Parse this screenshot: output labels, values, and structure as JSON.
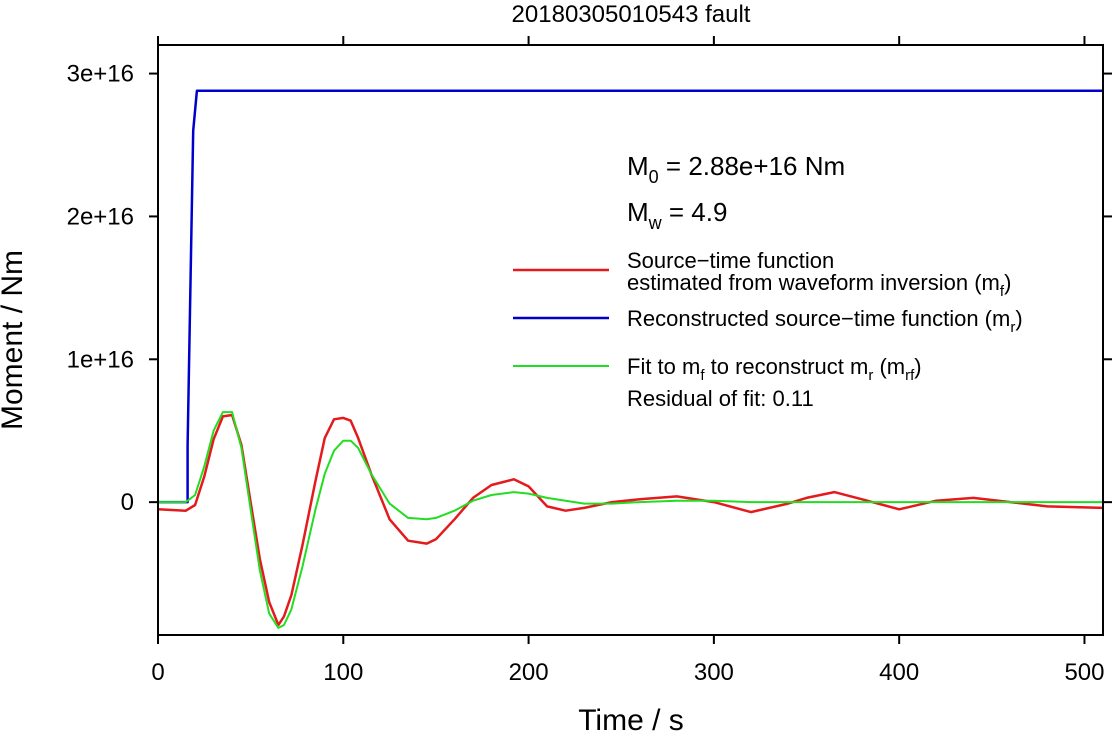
{
  "chart_data": {
    "type": "line",
    "title": "20180305010543 fault",
    "xlabel": "Time / s",
    "ylabel": "Moment / Nm",
    "xlim": [
      0,
      510
    ],
    "ylim": [
      -9300000000000000.0,
      3.2e+16
    ],
    "xticks": [
      0,
      100,
      200,
      300,
      400,
      500
    ],
    "xtick_labels": [
      "0",
      "100",
      "200",
      "300",
      "400",
      "500"
    ],
    "yticks": [
      0,
      1e+16,
      2e+16,
      3e+16
    ],
    "ytick_labels": [
      "0",
      "1e+16",
      "2e+16",
      "3e+16"
    ],
    "grid": false,
    "legend_position": "right",
    "annotations": {
      "m0": {
        "main": "M",
        "sub": "0",
        "rest": " = 2.88e+16 Nm"
      },
      "mw": {
        "main": "M",
        "sub": "w",
        "rest": " = 4.9"
      },
      "residual": "Residual of fit: 0.11"
    },
    "legend": [
      {
        "line1": "Source−time function",
        "line2_main": "estimated from waveform inversion (m",
        "line2_sub": "f",
        "line2_end": ")",
        "color": "#e41a1c"
      },
      {
        "line1_main": "Reconstructed source−time function (m",
        "line1_sub": "r",
        "line1_end": ")",
        "color": "#0000cc"
      },
      {
        "p1": "Fit to m",
        "s1": "f",
        "p2": " to reconstruct m",
        "s2": "r",
        "p3": " (m",
        "s3": "rf",
        "p4": ")",
        "color": "#22dd22"
      }
    ],
    "series": [
      {
        "color": "#0000cc",
        "x": [
          0,
          16,
          16,
          19,
          21,
          510
        ],
        "y": [
          0,
          0,
          4000000000000000.0,
          2.6e+16,
          2.88e+16,
          2.88e+16
        ]
      },
      {
        "color": "#e41a1c",
        "x": [
          0,
          15,
          20,
          25,
          30,
          35,
          40,
          45,
          50,
          55,
          60,
          65,
          68,
          72,
          78,
          85,
          90,
          95,
          100,
          104,
          108,
          115,
          125,
          135,
          145,
          150,
          160,
          170,
          180,
          192,
          200,
          210,
          220,
          230,
          245,
          260,
          280,
          300,
          320,
          340,
          350,
          365,
          380,
          400,
          420,
          440,
          460,
          480,
          510
        ],
        "y": [
          -500000000000000.0,
          -600000000000000.0,
          -200000000000000.0,
          1800000000000000.0,
          4400000000000000.0,
          6000000000000000.0,
          6100000000000000.0,
          4000000000000000.0,
          0,
          -4000000000000000.0,
          -7000000000000000.0,
          -8600000000000000.0,
          -8000000000000000.0,
          -6500000000000000.0,
          -3000000000000000.0,
          1500000000000000.0,
          4500000000000000.0,
          5800000000000000.0,
          5900000000000000.0,
          5700000000000000.0,
          4500000000000000.0,
          2000000000000000.0,
          -1200000000000000.0,
          -2700000000000000.0,
          -2900000000000000.0,
          -2600000000000000.0,
          -1200000000000000.0,
          300000000000000.0,
          1200000000000000.0,
          1600000000000000.0,
          1100000000000000.0,
          -300000000000000.0,
          -600000000000000.0,
          -400000000000000.0,
          0,
          200000000000000.0,
          400000000000000.0,
          0,
          -700000000000000.0,
          -100000000000000.0,
          300000000000000.0,
          700000000000000.0,
          200000000000000.0,
          -500000000000000.0,
          100000000000000.0,
          300000000000000.0,
          0,
          -300000000000000.0,
          -400000000000000.0
        ]
      },
      {
        "color": "#22dd22",
        "x": [
          0,
          15,
          20,
          25,
          30,
          35,
          40,
          45,
          50,
          55,
          60,
          65,
          68,
          72,
          78,
          85,
          90,
          95,
          100,
          104,
          108,
          115,
          125,
          135,
          145,
          150,
          160,
          170,
          180,
          192,
          200,
          210,
          220,
          230,
          245,
          260,
          280,
          300,
          320,
          340,
          360,
          380,
          400,
          420,
          440,
          460,
          480,
          510
        ],
        "y": [
          0,
          0,
          500000000000000.0,
          2500000000000000.0,
          5000000000000000.0,
          6300000000000000.0,
          6300000000000000.0,
          3800000000000000.0,
          -500000000000000.0,
          -4800000000000000.0,
          -7800000000000000.0,
          -8800000000000000.0,
          -8600000000000000.0,
          -7500000000000000.0,
          -4500000000000000.0,
          -500000000000000.0,
          2000000000000000.0,
          3600000000000000.0,
          4300000000000000.0,
          4300000000000000.0,
          3800000000000000.0,
          2000000000000000.0,
          -100000000000000.0,
          -1100000000000000.0,
          -1200000000000000.0,
          -1100000000000000.0,
          -600000000000000.0,
          100000000000000.0,
          500000000000000.0,
          700000000000000.0,
          600000000000000.0,
          300000000000000.0,
          100000000000000.0,
          -100000000000000.0,
          -100000000000000.0,
          0,
          100000000000000.0,
          100000000000000.0,
          0,
          0,
          0,
          0,
          0,
          0,
          0,
          0,
          0,
          0
        ]
      }
    ]
  }
}
